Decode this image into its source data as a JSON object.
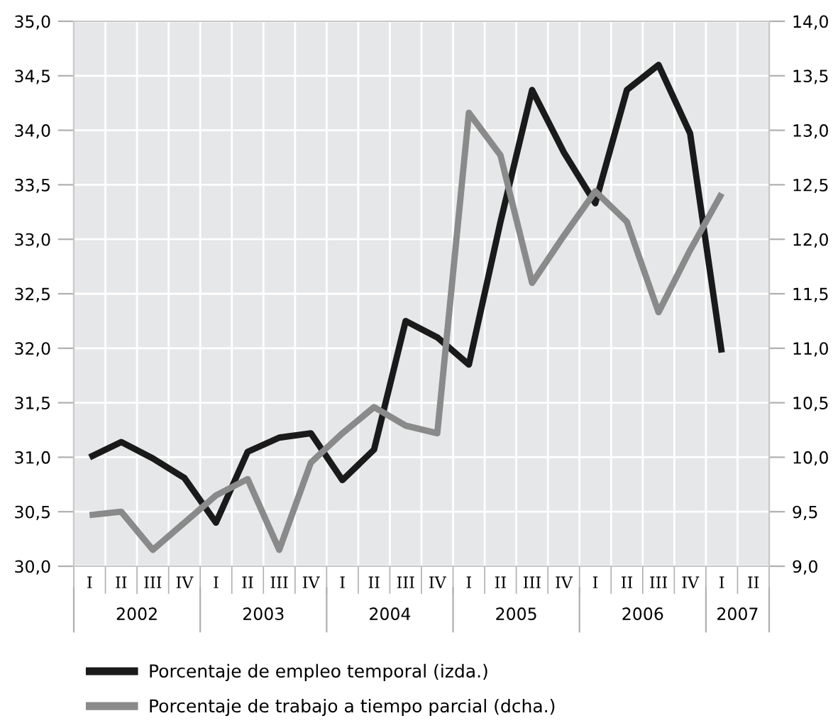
{
  "chart_data": {
    "type": "line",
    "categories": [
      "I",
      "II",
      "III",
      "IV",
      "I",
      "II",
      "III",
      "IV",
      "I",
      "II",
      "III",
      "IV",
      "I",
      "II",
      "III",
      "IV",
      "I",
      "II",
      "III",
      "IV",
      "I",
      "II"
    ],
    "series": [
      {
        "name": "Porcentaje de empleo temporal (izda.)",
        "color": "#1a1a1a",
        "values": [
          31.0,
          31.14,
          30.99,
          30.81,
          30.4,
          31.05,
          31.18,
          31.22,
          30.79,
          31.07,
          32.25,
          32.1,
          31.85,
          33.16,
          34.37,
          33.8,
          33.33,
          34.37,
          34.6,
          33.97,
          31.96,
          null
        ]
      },
      {
        "name": "Porcentaje de trabajo a tiempo parcial (dcha.)",
        "color": "#8a8a8a",
        "axis": "y2",
        "values": [
          9.47,
          9.5,
          9.15,
          9.4,
          9.65,
          9.8,
          9.15,
          9.95,
          10.22,
          10.46,
          10.29,
          10.22,
          13.16,
          12.77,
          11.6,
          12.03,
          12.44,
          12.16,
          11.33,
          11.9,
          12.42,
          null
        ]
      }
    ],
    "ylim": [
      30.0,
      35.0
    ],
    "yticks": [
      {
        "value": 30.0,
        "label": "30,0"
      },
      {
        "value": 30.5,
        "label": "30,5"
      },
      {
        "value": 31.0,
        "label": "31,0"
      },
      {
        "value": 31.5,
        "label": "31,5"
      },
      {
        "value": 32.0,
        "label": "32,0"
      },
      {
        "value": 32.5,
        "label": "32,5"
      },
      {
        "value": 33.0,
        "label": "33,0"
      },
      {
        "value": 33.5,
        "label": "33,5"
      },
      {
        "value": 34.0,
        "label": "34,0"
      },
      {
        "value": 34.5,
        "label": "34,5"
      },
      {
        "value": 35.0,
        "label": "35,0"
      }
    ],
    "y2lim": [
      9.0,
      14.0
    ],
    "y2ticks": [
      {
        "value": 9.0,
        "label": "9,0"
      },
      {
        "value": 9.5,
        "label": "9,5"
      },
      {
        "value": 10.0,
        "label": "10,0"
      },
      {
        "value": 10.5,
        "label": "10,5"
      },
      {
        "value": 11.0,
        "label": "11,0"
      },
      {
        "value": 11.5,
        "label": "11,5"
      },
      {
        "value": 12.0,
        "label": "12,0"
      },
      {
        "value": 12.5,
        "label": "12,5"
      },
      {
        "value": 13.0,
        "label": "13,0"
      },
      {
        "value": 13.5,
        "label": "13,5"
      },
      {
        "value": 14.0,
        "label": "14,0"
      }
    ],
    "annotations": [
      "2002",
      "2003",
      "2004",
      "2005",
      "2006",
      "2007"
    ],
    "grid": true,
    "legend": "bottom",
    "line_style": "solid",
    "marker": "none"
  }
}
